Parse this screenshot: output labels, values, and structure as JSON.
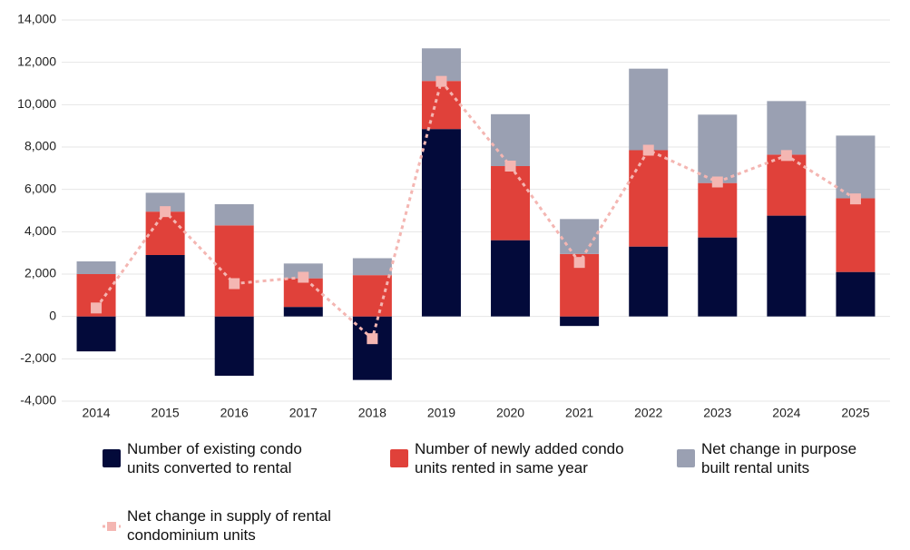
{
  "chart_data": {
    "type": "bar",
    "stacked": true,
    "categories": [
      "2014",
      "2015",
      "2016",
      "2017",
      "2018",
      "2019",
      "2020",
      "2021",
      "2022",
      "2023",
      "2024",
      "2025"
    ],
    "series": [
      {
        "name": "Number of existing condo units converted to rental",
        "color": "#030a3a",
        "type": "bar",
        "values": [
          -1650,
          2900,
          -2800,
          450,
          -3000,
          8850,
          3600,
          -450,
          3300,
          3730,
          4760,
          2100
        ]
      },
      {
        "name": "Number of newly added condo units rented in same year",
        "color": "#e0413a",
        "type": "bar",
        "values": [
          2000,
          2050,
          4300,
          1350,
          1950,
          2270,
          3500,
          2950,
          4550,
          2570,
          2880,
          3480
        ]
      },
      {
        "name": "Net change in purpose built rental units",
        "color": "#9aa0b2",
        "type": "bar",
        "values": [
          600,
          890,
          1000,
          700,
          800,
          1540,
          2450,
          1650,
          3850,
          3230,
          2530,
          2960
        ]
      },
      {
        "name": "Net change in supply of rental condominium units",
        "color": "#f4b6b2",
        "type": "line",
        "values": [
          400,
          4950,
          1550,
          1850,
          -1050,
          11100,
          7100,
          2550,
          7850,
          6350,
          7600,
          5550
        ]
      }
    ],
    "ylim": [
      -4000,
      14000
    ],
    "yticks": [
      {
        "value": -4000,
        "label": "-4,000"
      },
      {
        "value": -2000,
        "label": "-2,000"
      },
      0,
      {
        "value": 2000,
        "label": "2,000"
      },
      {
        "value": 4000,
        "label": "4,000"
      },
      {
        "value": 6000,
        "label": "6,000"
      },
      {
        "value": 8000,
        "label": "8,000"
      },
      {
        "value": 10000,
        "label": "10,000"
      },
      {
        "value": 12000,
        "label": "12,000"
      },
      {
        "value": 14000,
        "label": "14,000"
      }
    ],
    "grid": true
  }
}
